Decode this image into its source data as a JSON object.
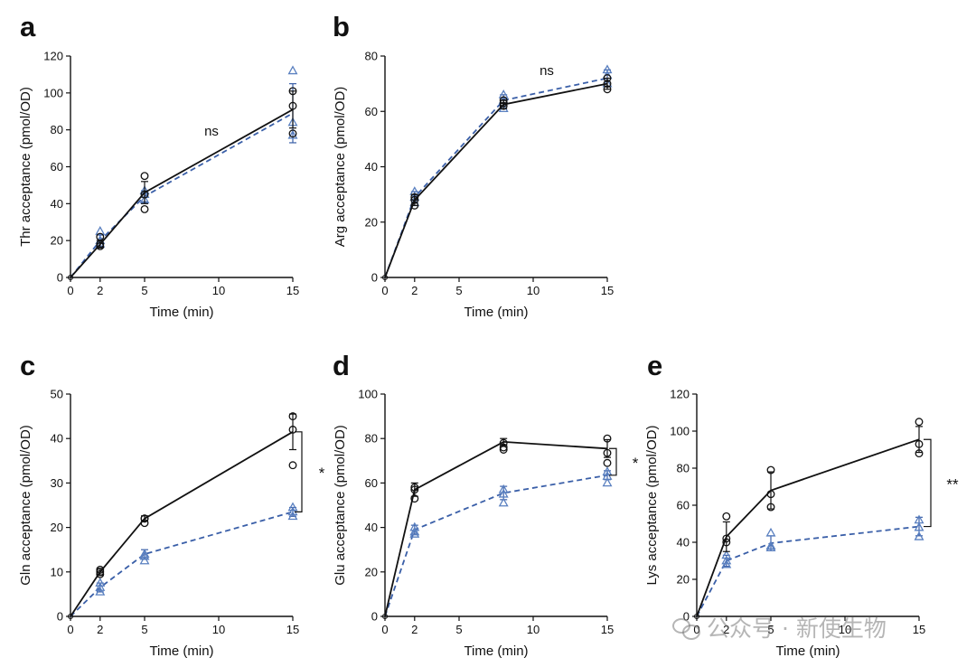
{
  "colors": {
    "wt": "#111111",
    "mut": "#3a5fa8",
    "mut_marker": "#5a80c0"
  },
  "watermark": {
    "text": "公众号 · 新使生物",
    "icon": "wechat-icon"
  },
  "chart_data": [
    {
      "panel": "a",
      "type": "line",
      "xlabel": "Time (min)",
      "ylabel": "Thr acceptance (pmol/OD)",
      "xlim": [
        0,
        15
      ],
      "ylim": [
        0,
        120
      ],
      "xticks": [
        0,
        2,
        5,
        10,
        15
      ],
      "yticks": [
        0,
        20,
        40,
        60,
        80,
        100,
        120
      ],
      "annotation": "ns",
      "series": [
        {
          "name": "solid black (circles)",
          "x": [
            0,
            2,
            5,
            15
          ],
          "y": [
            0,
            18,
            46,
            91
          ],
          "err": [
            0,
            2,
            6,
            10
          ],
          "points": [
            [
              2,
              17
            ],
            [
              2,
              18
            ],
            [
              2,
              22
            ],
            [
              5,
              37
            ],
            [
              5,
              45
            ],
            [
              5,
              55
            ],
            [
              15,
              78
            ],
            [
              15,
              93
            ],
            [
              15,
              101
            ]
          ]
        },
        {
          "name": "dashed blue (triangles)",
          "x": [
            0,
            2,
            5,
            15
          ],
          "y": [
            0,
            20,
            44,
            89
          ],
          "err": [
            0,
            3,
            3,
            16
          ],
          "points": [
            [
              2,
              18
            ],
            [
              2,
              20
            ],
            [
              2,
              25
            ],
            [
              5,
              42
            ],
            [
              5,
              45
            ],
            [
              5,
              47
            ],
            [
              15,
              77
            ],
            [
              15,
              84
            ],
            [
              15,
              112
            ]
          ]
        }
      ]
    },
    {
      "panel": "b",
      "type": "line",
      "xlabel": "Time (min)",
      "ylabel": "Arg acceptance (pmol/OD)",
      "xlim": [
        0,
        15
      ],
      "ylim": [
        0,
        80
      ],
      "xticks": [
        0,
        2,
        5,
        10,
        15
      ],
      "yticks": [
        0,
        20,
        40,
        60,
        80
      ],
      "annotation": "ns",
      "series": [
        {
          "name": "solid black (circles)",
          "x": [
            0,
            2,
            8,
            15
          ],
          "y": [
            0,
            28,
            62.5,
            70
          ],
          "err": [
            0,
            2,
            1.5,
            2
          ],
          "points": [
            [
              2,
              26
            ],
            [
              2,
              28
            ],
            [
              2,
              29
            ],
            [
              8,
              62
            ],
            [
              8,
              63
            ],
            [
              8,
              64
            ],
            [
              15,
              68
            ],
            [
              15,
              70
            ],
            [
              15,
              72
            ]
          ]
        },
        {
          "name": "dashed blue (triangles)",
          "x": [
            0,
            2,
            8,
            15
          ],
          "y": [
            0,
            29,
            64,
            72
          ],
          "err": [
            0,
            2,
            2,
            3
          ],
          "points": [
            [
              2,
              27
            ],
            [
              2,
              29
            ],
            [
              2,
              31
            ],
            [
              8,
              61
            ],
            [
              8,
              64
            ],
            [
              8,
              66
            ],
            [
              15,
              70
            ],
            [
              15,
              73
            ],
            [
              15,
              75
            ]
          ]
        }
      ]
    },
    {
      "panel": "c",
      "type": "line",
      "xlabel": "Time (min)",
      "ylabel": "Gln acceptance (pmol/OD)",
      "xlim": [
        0,
        15
      ],
      "ylim": [
        0,
        50
      ],
      "xticks": [
        0,
        2,
        5,
        10,
        15
      ],
      "yticks": [
        0,
        10,
        20,
        30,
        40,
        50
      ],
      "annotation": "*",
      "series": [
        {
          "name": "solid black (circles)",
          "x": [
            0,
            2,
            5,
            15
          ],
          "y": [
            0,
            10,
            22,
            41.5
          ],
          "err": [
            0,
            0.8,
            0.6,
            4
          ],
          "points": [
            [
              2,
              9.5
            ],
            [
              2,
              10
            ],
            [
              2,
              10.5
            ],
            [
              5,
              21
            ],
            [
              5,
              22
            ],
            [
              5,
              22
            ],
            [
              15,
              34
            ],
            [
              15,
              42
            ],
            [
              15,
              45
            ]
          ]
        },
        {
          "name": "dashed blue (triangles)",
          "x": [
            0,
            2,
            5,
            15
          ],
          "y": [
            0,
            6.5,
            14,
            23.5
          ],
          "err": [
            0,
            1,
            1,
            1
          ],
          "points": [
            [
              2,
              5.5
            ],
            [
              2,
              6.5
            ],
            [
              2,
              7.5
            ],
            [
              5,
              12.5
            ],
            [
              5,
              13.5
            ],
            [
              5,
              14
            ],
            [
              15,
              22.5
            ],
            [
              15,
              23.5
            ],
            [
              15,
              24.5
            ]
          ]
        }
      ]
    },
    {
      "panel": "d",
      "type": "line",
      "xlabel": "Time (min)",
      "ylabel": "Glu acceptance (pmol/OD)",
      "xlim": [
        0,
        15
      ],
      "ylim": [
        0,
        100
      ],
      "xticks": [
        0,
        2,
        5,
        10,
        15
      ],
      "yticks": [
        0,
        20,
        40,
        60,
        80,
        100
      ],
      "annotation": "*",
      "series": [
        {
          "name": "solid black (circles)",
          "x": [
            0,
            2,
            8,
            15
          ],
          "y": [
            0,
            57,
            78.5,
            75.5
          ],
          "err": [
            0,
            3,
            1.5,
            4
          ],
          "points": [
            [
              2,
              53
            ],
            [
              2,
              57
            ],
            [
              2,
              58
            ],
            [
              8,
              75
            ],
            [
              8,
              76
            ],
            [
              8,
              78
            ],
            [
              15,
              69
            ],
            [
              15,
              73.5
            ],
            [
              15,
              80
            ]
          ]
        },
        {
          "name": "dashed blue (triangles)",
          "x": [
            0,
            2,
            8,
            15
          ],
          "y": [
            0,
            39,
            55.5,
            63.5
          ],
          "err": [
            0,
            2,
            3,
            2
          ],
          "points": [
            [
              2,
              37
            ],
            [
              2,
              38
            ],
            [
              2,
              40
            ],
            [
              8,
              51
            ],
            [
              8,
              55
            ],
            [
              8,
              57
            ],
            [
              15,
              60
            ],
            [
              15,
              63
            ],
            [
              15,
              65
            ]
          ]
        }
      ]
    },
    {
      "panel": "e",
      "type": "line",
      "xlabel": "Time (min)",
      "ylabel": "Lys acceptance (pmol/OD)",
      "xlim": [
        0,
        15
      ],
      "ylim": [
        0,
        120
      ],
      "xticks": [
        0,
        2,
        5,
        10,
        15
      ],
      "yticks": [
        0,
        20,
        40,
        60,
        80,
        100,
        120
      ],
      "annotation": "**",
      "series": [
        {
          "name": "solid black (circles)",
          "x": [
            0,
            2,
            5,
            15
          ],
          "y": [
            0,
            43,
            68,
            95.5
          ],
          "err": [
            0,
            8,
            10,
            7
          ],
          "points": [
            [
              2,
              40
            ],
            [
              2,
              42
            ],
            [
              2,
              54
            ],
            [
              5,
              59
            ],
            [
              5,
              66
            ],
            [
              5,
              79
            ],
            [
              15,
              88
            ],
            [
              15,
              93
            ],
            [
              15,
              105
            ]
          ]
        },
        {
          "name": "dashed blue (triangles)",
          "x": [
            0,
            2,
            5,
            15
          ],
          "y": [
            0,
            30,
            39.5,
            48.5
          ],
          "err": [
            0,
            3,
            4,
            5
          ],
          "points": [
            [
              2,
              28
            ],
            [
              2,
              30
            ],
            [
              2,
              33
            ],
            [
              5,
              37
            ],
            [
              5,
              38
            ],
            [
              5,
              45
            ],
            [
              15,
              43
            ],
            [
              15,
              48
            ],
            [
              15,
              52
            ]
          ]
        }
      ]
    }
  ]
}
